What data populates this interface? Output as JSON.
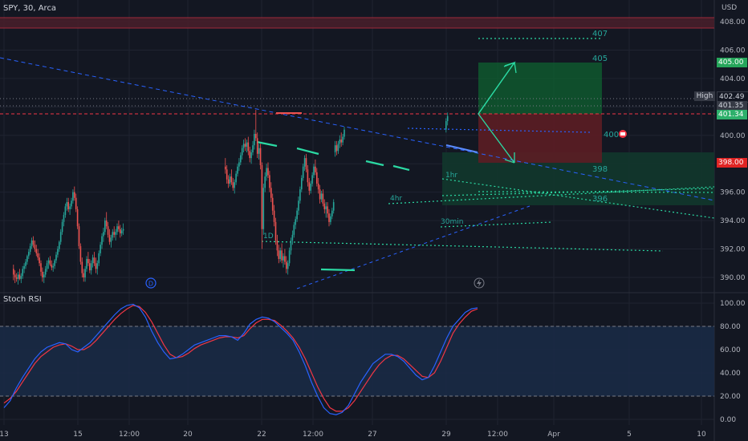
{
  "header": {
    "symbol_info": "SPY, 30, Arca"
  },
  "indicator": {
    "name": "Stoch RSI"
  },
  "axis": {
    "currency": "USD",
    "price_ticks": [
      "408.00",
      "406.00",
      "404.00",
      "402.00",
      "400.00",
      "398.00",
      "396.00",
      "394.00",
      "392.00",
      "390.00"
    ],
    "stoch_ticks": [
      "100.00",
      "80.00",
      "60.00",
      "40.00",
      "20.00",
      "0.00"
    ],
    "time_ticks": [
      "13",
      "15",
      "12:00",
      "20",
      "22",
      "12:00",
      "27",
      "29",
      "12:00",
      "Apr",
      "5",
      "10"
    ]
  },
  "price_tags": {
    "high_label": "High",
    "high_value": "402.49",
    "current_1": "401.35",
    "current_2": "401.34",
    "target_value": "405.00",
    "stop_value": "398.00"
  },
  "annotations": {
    "level_407": "407",
    "level_405": "405",
    "level_400": "400",
    "level_398": "398",
    "level_396": "396",
    "tf_1hr": "1hr",
    "tf_4hr": "4hr",
    "tf_30min": "30min",
    "tf_1d": "1D",
    "dividend_marker": "D"
  },
  "colors": {
    "background": "#131722",
    "bull": "#26a69a",
    "bear": "#ef5350",
    "teal_line": "#2bd9a3",
    "blue_dotted": "#2962ff",
    "green_zone": "#0f5c30",
    "red_zone": "#5c1d24",
    "stoch_k": "#2962ff",
    "stoch_d": "#f23645"
  },
  "icons": {
    "lightning": "lightning-icon",
    "earnings": "earnings-icon"
  },
  "chart_data": {
    "type": "candlestick",
    "symbol": "SPY",
    "timeframe": "30",
    "ylim": [
      389.3,
      408.7
    ],
    "candles": [
      [
        390.6,
        390.9,
        389.8,
        390.2
      ],
      [
        390.2,
        390.5,
        389.6,
        390.0
      ],
      [
        390.0,
        390.3,
        389.7,
        389.9
      ],
      [
        389.9,
        390.4,
        389.5,
        390.2
      ],
      [
        390.2,
        390.6,
        389.8,
        389.9
      ],
      [
        389.9,
        390.3,
        389.6,
        390.1
      ],
      [
        390.1,
        390.8,
        389.9,
        390.6
      ],
      [
        390.6,
        391.0,
        390.3,
        390.8
      ],
      [
        390.8,
        391.3,
        390.6,
        391.1
      ],
      [
        391.1,
        391.6,
        390.9,
        391.5
      ],
      [
        391.5,
        392.0,
        391.3,
        391.8
      ],
      [
        391.8,
        392.4,
        391.6,
        392.2
      ],
      [
        392.2,
        392.8,
        392.0,
        392.6
      ],
      [
        392.6,
        392.9,
        392.1,
        392.3
      ],
      [
        392.3,
        392.6,
        391.8,
        392.0
      ],
      [
        392.0,
        392.3,
        391.5,
        391.7
      ],
      [
        391.7,
        392.0,
        391.2,
        391.4
      ],
      [
        391.4,
        391.7,
        390.8,
        391.0
      ],
      [
        391.0,
        391.2,
        390.1,
        390.4
      ],
      [
        390.4,
        390.7,
        389.7,
        390.0
      ],
      [
        390.0,
        390.4,
        389.6,
        390.2
      ],
      [
        390.2,
        390.8,
        390.0,
        390.6
      ],
      [
        390.6,
        391.2,
        390.4,
        391.0
      ],
      [
        391.0,
        391.4,
        390.6,
        391.2
      ],
      [
        391.2,
        391.5,
        390.8,
        390.9
      ],
      [
        390.9,
        391.2,
        390.5,
        390.7
      ],
      [
        390.7,
        391.0,
        390.4,
        390.8
      ],
      [
        390.8,
        391.3,
        390.6,
        391.2
      ],
      [
        391.2,
        391.8,
        391.0,
        391.6
      ],
      [
        391.6,
        392.2,
        391.4,
        392.0
      ],
      [
        392.0,
        392.6,
        391.8,
        392.5
      ],
      [
        392.5,
        393.4,
        392.3,
        393.2
      ],
      [
        393.2,
        394.1,
        393.0,
        393.9
      ],
      [
        393.9,
        394.6,
        393.6,
        394.4
      ],
      [
        394.4,
        395.2,
        394.2,
        395.0
      ],
      [
        395.0,
        395.6,
        394.7,
        395.3
      ],
      [
        395.3,
        395.6,
        394.6,
        394.8
      ],
      [
        394.8,
        395.2,
        394.4,
        395.0
      ],
      [
        395.0,
        395.6,
        394.8,
        395.4
      ],
      [
        395.4,
        396.2,
        395.2,
        396.0
      ],
      [
        396.0,
        396.4,
        395.4,
        395.6
      ],
      [
        395.6,
        395.9,
        394.6,
        394.8
      ],
      [
        394.8,
        395.0,
        393.4,
        393.6
      ],
      [
        393.6,
        393.8,
        392.0,
        392.2
      ],
      [
        392.2,
        392.4,
        390.9,
        391.1
      ],
      [
        391.1,
        391.4,
        390.0,
        390.3
      ],
      [
        390.3,
        390.6,
        389.7,
        390.0
      ],
      [
        390.0,
        390.8,
        389.7,
        390.6
      ],
      [
        390.6,
        391.5,
        390.4,
        391.3
      ],
      [
        391.3,
        391.8,
        390.8,
        391.0
      ],
      [
        391.0,
        391.3,
        390.3,
        390.5
      ],
      [
        390.5,
        391.2,
        390.2,
        391.0
      ],
      [
        391.0,
        391.6,
        390.7,
        391.4
      ],
      [
        391.4,
        391.8,
        390.8,
        391.0
      ],
      [
        391.0,
        391.4,
        390.3,
        390.6
      ],
      [
        390.6,
        391.2,
        390.2,
        391.0
      ],
      [
        391.0,
        391.9,
        390.8,
        391.7
      ],
      [
        391.7,
        392.5,
        391.5,
        392.3
      ],
      [
        392.3,
        393.1,
        392.0,
        392.9
      ],
      [
        392.9,
        393.5,
        392.5,
        393.2
      ],
      [
        393.2,
        394.2,
        393.0,
        394.0
      ],
      [
        394.0,
        394.6,
        393.4,
        393.6
      ],
      [
        393.6,
        393.9,
        392.8,
        393.0
      ],
      [
        393.0,
        393.4,
        392.3,
        392.5
      ],
      [
        392.5,
        393.0,
        392.1,
        392.8
      ],
      [
        392.8,
        393.4,
        392.6,
        393.2
      ],
      [
        393.2,
        393.6,
        392.8,
        393.0
      ],
      [
        393.0,
        393.4,
        392.6,
        393.2
      ],
      [
        393.2,
        393.8,
        393.0,
        393.6
      ],
      [
        393.6,
        394.0,
        393.2,
        393.4
      ],
      [
        393.4,
        393.7,
        392.8,
        393.1
      ],
      [
        393.1,
        393.5,
        392.9,
        393.3
      ],
      [
        393.3,
        393.8,
        393.0,
        393.4
      ],
      [
        397.8,
        398.4,
        397.3,
        397.6
      ],
      [
        397.6,
        397.9,
        396.6,
        396.9
      ],
      [
        396.9,
        397.2,
        396.3,
        396.6
      ],
      [
        396.6,
        397.3,
        396.4,
        397.1
      ],
      [
        397.1,
        397.6,
        396.5,
        396.7
      ],
      [
        396.7,
        397.0,
        396.1,
        396.3
      ],
      [
        396.3,
        396.9,
        395.9,
        396.7
      ],
      [
        396.7,
        397.5,
        396.5,
        397.3
      ],
      [
        397.3,
        398.0,
        397.1,
        397.8
      ],
      [
        397.8,
        398.4,
        397.5,
        398.1
      ],
      [
        398.1,
        398.8,
        397.9,
        398.6
      ],
      [
        398.6,
        399.3,
        398.3,
        399.1
      ],
      [
        399.1,
        399.7,
        398.8,
        399.4
      ],
      [
        399.4,
        399.8,
        398.9,
        399.2
      ],
      [
        399.2,
        399.7,
        398.8,
        399.5
      ],
      [
        399.5,
        399.9,
        398.6,
        398.9
      ],
      [
        398.9,
        399.2,
        398.1,
        398.4
      ],
      [
        398.4,
        399.0,
        398.0,
        398.8
      ],
      [
        398.8,
        399.6,
        398.6,
        399.3
      ],
      [
        399.3,
        400.4,
        399.0,
        400.1
      ],
      [
        400.1,
        401.8,
        399.6,
        399.8
      ],
      [
        399.8,
        400.2,
        398.4,
        398.7
      ],
      [
        398.7,
        399.4,
        398.3,
        399.1
      ],
      [
        399.1,
        399.4,
        397.6,
        397.9
      ],
      [
        397.9,
        398.1,
        392.0,
        393.4
      ],
      [
        393.4,
        396.6,
        393.0,
        396.3
      ],
      [
        396.3,
        397.4,
        396.0,
        397.1
      ],
      [
        397.1,
        398.0,
        396.8,
        397.7
      ],
      [
        397.7,
        398.1,
        397.0,
        397.2
      ],
      [
        397.2,
        397.5,
        396.0,
        396.3
      ],
      [
        396.3,
        396.7,
        395.3,
        395.6
      ],
      [
        395.6,
        395.9,
        394.4,
        394.7
      ],
      [
        394.7,
        395.1,
        393.6,
        393.9
      ],
      [
        393.9,
        394.2,
        392.3,
        392.6
      ],
      [
        392.6,
        393.0,
        391.5,
        391.9
      ],
      [
        391.9,
        392.3,
        391.0,
        391.3
      ],
      [
        391.3,
        392.1,
        391.1,
        391.9
      ],
      [
        391.9,
        392.4,
        391.0,
        391.2
      ],
      [
        391.2,
        391.7,
        390.7,
        391.5
      ],
      [
        391.5,
        392.0,
        390.9,
        391.1
      ],
      [
        391.1,
        391.5,
        390.3,
        390.6
      ],
      [
        390.6,
        391.2,
        390.2,
        391.0
      ],
      [
        391.0,
        392.1,
        390.8,
        391.9
      ],
      [
        391.9,
        392.8,
        391.6,
        392.6
      ],
      [
        392.6,
        393.3,
        392.3,
        393.0
      ],
      [
        393.0,
        393.9,
        392.8,
        393.7
      ],
      [
        393.7,
        394.3,
        393.4,
        394.1
      ],
      [
        394.1,
        394.9,
        393.9,
        394.7
      ],
      [
        394.7,
        395.7,
        394.4,
        395.4
      ],
      [
        395.4,
        396.4,
        395.2,
        396.2
      ],
      [
        396.2,
        397.2,
        396.0,
        397.0
      ],
      [
        397.0,
        398.0,
        396.8,
        397.8
      ],
      [
        397.8,
        398.6,
        397.5,
        398.4
      ],
      [
        398.4,
        398.7,
        397.4,
        397.6
      ],
      [
        397.6,
        397.9,
        396.4,
        396.7
      ],
      [
        396.7,
        397.0,
        395.8,
        396.1
      ],
      [
        396.1,
        396.8,
        395.9,
        396.6
      ],
      [
        396.6,
        397.4,
        396.4,
        397.2
      ],
      [
        397.2,
        398.0,
        397.0,
        397.8
      ],
      [
        397.8,
        398.3,
        397.2,
        397.4
      ],
      [
        397.4,
        397.7,
        396.4,
        396.6
      ],
      [
        396.6,
        397.0,
        395.9,
        396.2
      ],
      [
        396.2,
        396.5,
        395.2,
        395.5
      ],
      [
        395.5,
        396.1,
        395.3,
        395.9
      ],
      [
        395.9,
        396.2,
        395.0,
        395.2
      ],
      [
        395.2,
        395.5,
        394.5,
        394.8
      ],
      [
        394.8,
        395.3,
        394.2,
        395.0
      ],
      [
        395.0,
        395.3,
        394.2,
        394.5
      ],
      [
        394.5,
        394.8,
        393.6,
        393.9
      ],
      [
        393.9,
        394.5,
        393.7,
        394.3
      ],
      [
        394.3,
        394.9,
        394.1,
        394.7
      ],
      [
        394.7,
        395.5,
        394.5,
        395.3
      ],
      [
        398.8,
        399.6,
        398.5,
        399.3
      ],
      [
        399.3,
        399.6,
        398.6,
        398.9
      ],
      [
        398.9,
        399.6,
        398.7,
        399.4
      ],
      [
        399.4,
        400.0,
        399.1,
        399.7
      ],
      [
        399.7,
        400.2,
        399.2,
        399.5
      ],
      [
        399.5,
        400.1,
        399.3,
        399.9
      ],
      [
        399.9,
        400.6,
        399.7,
        400.4
      ],
      [
        400.4,
        401.2,
        400.2,
        401.0
      ],
      [
        401.0,
        401.6,
        400.7,
        401.35
      ]
    ],
    "stoch_rsi": {
      "k": [
        10,
        16,
        27,
        36,
        44,
        52,
        58,
        62,
        64,
        66,
        65,
        60,
        58,
        62,
        66,
        72,
        78,
        84,
        90,
        95,
        98,
        99,
        96,
        88,
        76,
        66,
        58,
        52,
        53,
        56,
        60,
        64,
        66,
        68,
        70,
        72,
        72,
        71,
        68,
        74,
        82,
        86,
        88,
        87,
        84,
        79,
        74,
        68,
        58,
        46,
        32,
        20,
        10,
        5,
        4,
        6,
        12,
        22,
        32,
        40,
        48,
        52,
        56,
        56,
        54,
        50,
        44,
        38,
        34,
        36,
        46,
        58,
        70,
        80,
        86,
        92,
        95,
        96
      ],
      "d": [
        14,
        18,
        24,
        32,
        40,
        48,
        54,
        58,
        62,
        64,
        65,
        63,
        60,
        60,
        63,
        68,
        74,
        80,
        86,
        91,
        95,
        98,
        97,
        92,
        84,
        74,
        64,
        56,
        53,
        54,
        57,
        61,
        64,
        66,
        68,
        70,
        71,
        71,
        70,
        72,
        78,
        83,
        86,
        86,
        85,
        81,
        76,
        70,
        62,
        52,
        40,
        28,
        18,
        10,
        7,
        7,
        10,
        16,
        24,
        32,
        40,
        47,
        52,
        55,
        55,
        52,
        47,
        42,
        37,
        36,
        40,
        50,
        62,
        74,
        82,
        88,
        93,
        95
      ]
    }
  }
}
